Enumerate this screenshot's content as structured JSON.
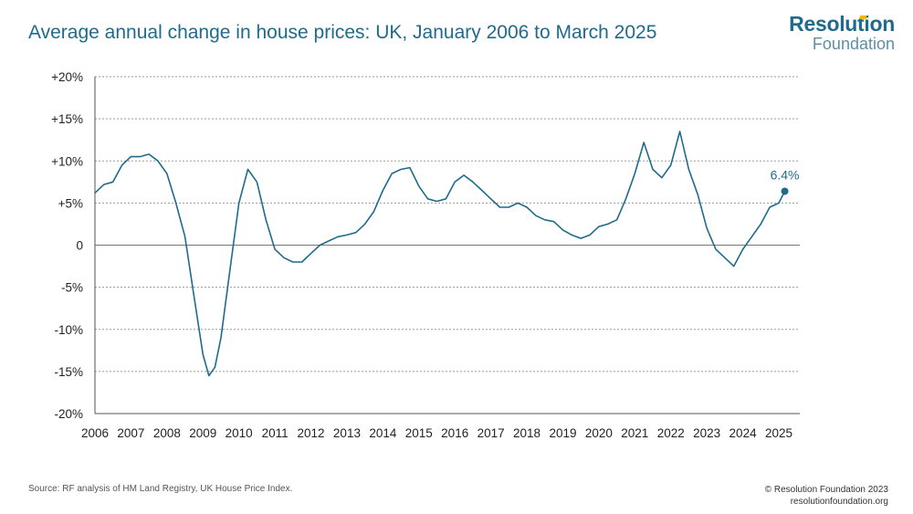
{
  "title": "Average annual change in house prices: UK, January 2006 to March 2025",
  "logo": {
    "main": "Resolution",
    "sub": "Foundation"
  },
  "source": "Source: RF analysis of HM Land Registry, UK House Price Index.",
  "copyright": {
    "line1": "© Resolution Foundation 2023",
    "line2": "resolutionfoundation.org"
  },
  "colors": {
    "line": "#1f6b8c",
    "title": "#1f6b8c",
    "logo_accent": "#f2b700"
  },
  "chart_data": {
    "type": "line",
    "title": "Average annual change in house prices: UK, January 2006 to March 2025",
    "xlabel": "",
    "ylabel": "",
    "xlim": [
      "2006-01",
      "2025-03"
    ],
    "ylim": [
      -20,
      20
    ],
    "grid": true,
    "legend": "none",
    "y_ticks": [
      20,
      15,
      10,
      5,
      0,
      -5,
      -10,
      -15,
      -20
    ],
    "y_tick_labels": [
      "+20%",
      "+15%",
      "+10%",
      "+5%",
      "0",
      "-5%",
      "-10%",
      "-15%",
      "-20%"
    ],
    "x_tick_labels": [
      "2006",
      "2007",
      "2008",
      "2009",
      "2010",
      "2011",
      "2012",
      "2013",
      "2014",
      "2015",
      "2016",
      "2017",
      "2018",
      "2019",
      "2020",
      "2021",
      "2022",
      "2023",
      "2024",
      "2025"
    ],
    "end_label": "6.4%",
    "series": [
      {
        "points": [
          [
            "2006-01",
            6.2
          ],
          [
            "2006-04",
            7.2
          ],
          [
            "2006-07",
            7.5
          ],
          [
            "2006-10",
            9.5
          ],
          [
            "2007-01",
            10.5
          ],
          [
            "2007-04",
            10.5
          ],
          [
            "2007-07",
            10.8
          ],
          [
            "2007-10",
            10.0
          ],
          [
            "2008-01",
            8.5
          ],
          [
            "2008-04",
            5.0
          ],
          [
            "2008-07",
            1.0
          ],
          [
            "2008-10",
            -6.0
          ],
          [
            "2009-01",
            -13.0
          ],
          [
            "2009-03",
            -15.5
          ],
          [
            "2009-05",
            -14.5
          ],
          [
            "2009-07",
            -11.0
          ],
          [
            "2009-10",
            -3.0
          ],
          [
            "2010-01",
            5.0
          ],
          [
            "2010-04",
            9.0
          ],
          [
            "2010-07",
            7.5
          ],
          [
            "2010-10",
            3.0
          ],
          [
            "2011-01",
            -0.5
          ],
          [
            "2011-04",
            -1.5
          ],
          [
            "2011-07",
            -2.0
          ],
          [
            "2011-10",
            -2.0
          ],
          [
            "2012-01",
            -1.0
          ],
          [
            "2012-04",
            0.0
          ],
          [
            "2012-07",
            0.5
          ],
          [
            "2012-10",
            1.0
          ],
          [
            "2013-01",
            1.2
          ],
          [
            "2013-04",
            1.5
          ],
          [
            "2013-07",
            2.5
          ],
          [
            "2013-10",
            4.0
          ],
          [
            "2014-01",
            6.5
          ],
          [
            "2014-04",
            8.5
          ],
          [
            "2014-07",
            9.0
          ],
          [
            "2014-10",
            9.2
          ],
          [
            "2015-01",
            7.0
          ],
          [
            "2015-04",
            5.5
          ],
          [
            "2015-07",
            5.2
          ],
          [
            "2015-10",
            5.5
          ],
          [
            "2016-01",
            7.5
          ],
          [
            "2016-04",
            8.3
          ],
          [
            "2016-07",
            7.5
          ],
          [
            "2016-10",
            6.5
          ],
          [
            "2017-01",
            5.5
          ],
          [
            "2017-04",
            4.5
          ],
          [
            "2017-07",
            4.5
          ],
          [
            "2017-10",
            5.0
          ],
          [
            "2018-01",
            4.5
          ],
          [
            "2018-04",
            3.5
          ],
          [
            "2018-07",
            3.0
          ],
          [
            "2018-10",
            2.8
          ],
          [
            "2019-01",
            1.8
          ],
          [
            "2019-04",
            1.2
          ],
          [
            "2019-07",
            0.8
          ],
          [
            "2019-10",
            1.2
          ],
          [
            "2020-01",
            2.2
          ],
          [
            "2020-04",
            2.5
          ],
          [
            "2020-07",
            3.0
          ],
          [
            "2020-10",
            5.5
          ],
          [
            "2021-01",
            8.5
          ],
          [
            "2021-04",
            12.2
          ],
          [
            "2021-07",
            9.0
          ],
          [
            "2021-10",
            8.0
          ],
          [
            "2022-01",
            9.5
          ],
          [
            "2022-04",
            13.5
          ],
          [
            "2022-07",
            9.0
          ],
          [
            "2022-10",
            6.0
          ],
          [
            "2023-01",
            2.0
          ],
          [
            "2023-04",
            -0.5
          ],
          [
            "2023-07",
            -1.5
          ],
          [
            "2023-10",
            -2.5
          ],
          [
            "2024-01",
            -0.5
          ],
          [
            "2024-04",
            1.0
          ],
          [
            "2024-07",
            2.5
          ],
          [
            "2024-10",
            4.5
          ],
          [
            "2025-01",
            5.0
          ],
          [
            "2025-03",
            6.4
          ]
        ]
      }
    ]
  }
}
